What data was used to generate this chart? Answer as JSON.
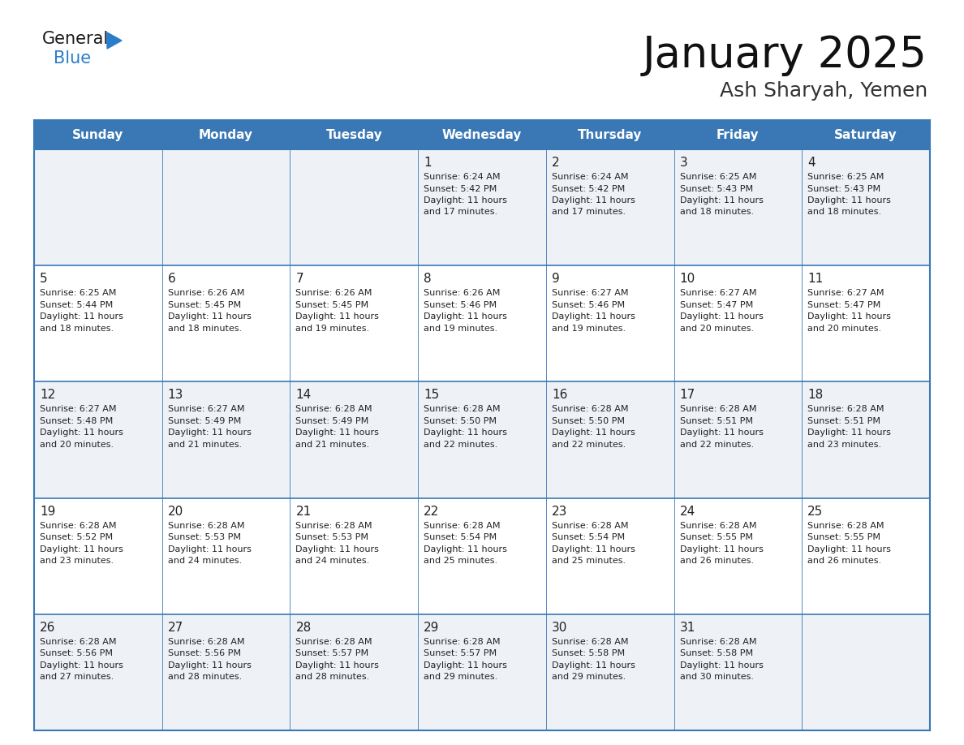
{
  "title": "January 2025",
  "subtitle": "Ash Sharyah, Yemen",
  "days_of_week": [
    "Sunday",
    "Monday",
    "Tuesday",
    "Wednesday",
    "Thursday",
    "Friday",
    "Saturday"
  ],
  "header_bg": "#3a78b5",
  "header_text": "#ffffff",
  "row_bg_odd": "#eef2f7",
  "row_bg_even": "#ffffff",
  "cell_text": "#222222",
  "grid_color": "#3a78b5",
  "calendar": [
    [
      null,
      null,
      null,
      {
        "day": 1,
        "sunrise": "6:24 AM",
        "sunset": "5:42 PM",
        "daylight": "11 hours and 17 minutes."
      },
      {
        "day": 2,
        "sunrise": "6:24 AM",
        "sunset": "5:42 PM",
        "daylight": "11 hours and 17 minutes."
      },
      {
        "day": 3,
        "sunrise": "6:25 AM",
        "sunset": "5:43 PM",
        "daylight": "11 hours and 18 minutes."
      },
      {
        "day": 4,
        "sunrise": "6:25 AM",
        "sunset": "5:43 PM",
        "daylight": "11 hours and 18 minutes."
      }
    ],
    [
      {
        "day": 5,
        "sunrise": "6:25 AM",
        "sunset": "5:44 PM",
        "daylight": "11 hours and 18 minutes."
      },
      {
        "day": 6,
        "sunrise": "6:26 AM",
        "sunset": "5:45 PM",
        "daylight": "11 hours and 18 minutes."
      },
      {
        "day": 7,
        "sunrise": "6:26 AM",
        "sunset": "5:45 PM",
        "daylight": "11 hours and 19 minutes."
      },
      {
        "day": 8,
        "sunrise": "6:26 AM",
        "sunset": "5:46 PM",
        "daylight": "11 hours and 19 minutes."
      },
      {
        "day": 9,
        "sunrise": "6:27 AM",
        "sunset": "5:46 PM",
        "daylight": "11 hours and 19 minutes."
      },
      {
        "day": 10,
        "sunrise": "6:27 AM",
        "sunset": "5:47 PM",
        "daylight": "11 hours and 20 minutes."
      },
      {
        "day": 11,
        "sunrise": "6:27 AM",
        "sunset": "5:47 PM",
        "daylight": "11 hours and 20 minutes."
      }
    ],
    [
      {
        "day": 12,
        "sunrise": "6:27 AM",
        "sunset": "5:48 PM",
        "daylight": "11 hours and 20 minutes."
      },
      {
        "day": 13,
        "sunrise": "6:27 AM",
        "sunset": "5:49 PM",
        "daylight": "11 hours and 21 minutes."
      },
      {
        "day": 14,
        "sunrise": "6:28 AM",
        "sunset": "5:49 PM",
        "daylight": "11 hours and 21 minutes."
      },
      {
        "day": 15,
        "sunrise": "6:28 AM",
        "sunset": "5:50 PM",
        "daylight": "11 hours and 22 minutes."
      },
      {
        "day": 16,
        "sunrise": "6:28 AM",
        "sunset": "5:50 PM",
        "daylight": "11 hours and 22 minutes."
      },
      {
        "day": 17,
        "sunrise": "6:28 AM",
        "sunset": "5:51 PM",
        "daylight": "11 hours and 22 minutes."
      },
      {
        "day": 18,
        "sunrise": "6:28 AM",
        "sunset": "5:51 PM",
        "daylight": "11 hours and 23 minutes."
      }
    ],
    [
      {
        "day": 19,
        "sunrise": "6:28 AM",
        "sunset": "5:52 PM",
        "daylight": "11 hours and 23 minutes."
      },
      {
        "day": 20,
        "sunrise": "6:28 AM",
        "sunset": "5:53 PM",
        "daylight": "11 hours and 24 minutes."
      },
      {
        "day": 21,
        "sunrise": "6:28 AM",
        "sunset": "5:53 PM",
        "daylight": "11 hours and 24 minutes."
      },
      {
        "day": 22,
        "sunrise": "6:28 AM",
        "sunset": "5:54 PM",
        "daylight": "11 hours and 25 minutes."
      },
      {
        "day": 23,
        "sunrise": "6:28 AM",
        "sunset": "5:54 PM",
        "daylight": "11 hours and 25 minutes."
      },
      {
        "day": 24,
        "sunrise": "6:28 AM",
        "sunset": "5:55 PM",
        "daylight": "11 hours and 26 minutes."
      },
      {
        "day": 25,
        "sunrise": "6:28 AM",
        "sunset": "5:55 PM",
        "daylight": "11 hours and 26 minutes."
      }
    ],
    [
      {
        "day": 26,
        "sunrise": "6:28 AM",
        "sunset": "5:56 PM",
        "daylight": "11 hours and 27 minutes."
      },
      {
        "day": 27,
        "sunrise": "6:28 AM",
        "sunset": "5:56 PM",
        "daylight": "11 hours and 28 minutes."
      },
      {
        "day": 28,
        "sunrise": "6:28 AM",
        "sunset": "5:57 PM",
        "daylight": "11 hours and 28 minutes."
      },
      {
        "day": 29,
        "sunrise": "6:28 AM",
        "sunset": "5:57 PM",
        "daylight": "11 hours and 29 minutes."
      },
      {
        "day": 30,
        "sunrise": "6:28 AM",
        "sunset": "5:58 PM",
        "daylight": "11 hours and 29 minutes."
      },
      {
        "day": 31,
        "sunrise": "6:28 AM",
        "sunset": "5:58 PM",
        "daylight": "11 hours and 30 minutes."
      },
      null
    ]
  ],
  "logo_general_color": "#1a1a1a",
  "logo_blue_color": "#2a7dc9",
  "logo_triangle_color": "#2a7dc9",
  "fig_width": 11.88,
  "fig_height": 9.18,
  "dpi": 100
}
